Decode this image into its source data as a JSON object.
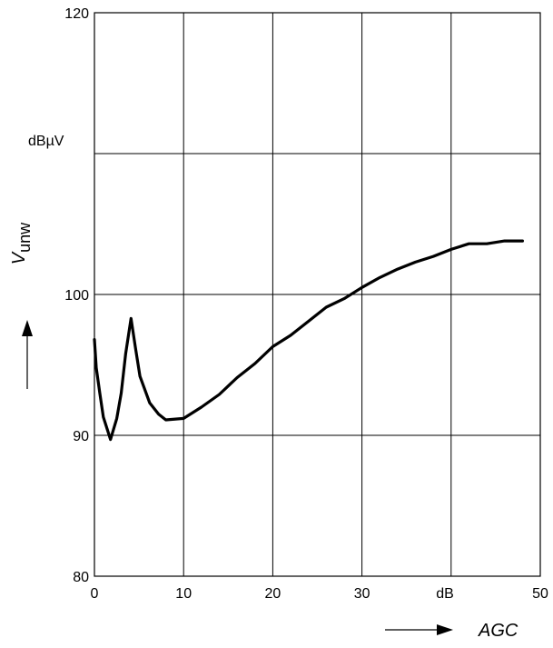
{
  "chart_data": {
    "type": "line",
    "xlabel": "AGC",
    "x_unit": "dB",
    "ylabel_main": "V",
    "ylabel_sub": "unw",
    "y_unit": "dBµV",
    "xlim": [
      0,
      50
    ],
    "ylim": [
      80,
      120
    ],
    "x_ticks": [
      {
        "value": 0,
        "label": "0"
      },
      {
        "value": 10,
        "label": "10"
      },
      {
        "value": 20,
        "label": "20"
      },
      {
        "value": 30,
        "label": "30"
      },
      {
        "value": 50,
        "label": "50"
      }
    ],
    "y_ticks": [
      {
        "value": 80,
        "label": "80"
      },
      {
        "value": 90,
        "label": "90"
      },
      {
        "value": 100,
        "label": "100"
      },
      {
        "value": 120,
        "label": "120"
      }
    ],
    "grid": true,
    "series": [
      {
        "color": "#000000",
        "points": [
          [
            0.0,
            96.8
          ],
          [
            0.2,
            94.8
          ],
          [
            0.6,
            93.0
          ],
          [
            1.0,
            91.3
          ],
          [
            1.8,
            89.7
          ],
          [
            2.5,
            91.2
          ],
          [
            3.0,
            93.0
          ],
          [
            3.5,
            95.8
          ],
          [
            4.1,
            98.3
          ],
          [
            4.6,
            96.2
          ],
          [
            5.1,
            94.2
          ],
          [
            6.2,
            92.3
          ],
          [
            7.2,
            91.5
          ],
          [
            8.0,
            91.1
          ],
          [
            10.0,
            91.2
          ],
          [
            12.0,
            92.0
          ],
          [
            14.0,
            92.9
          ],
          [
            16.0,
            94.1
          ],
          [
            18.0,
            95.1
          ],
          [
            20.0,
            96.3
          ],
          [
            22.0,
            97.1
          ],
          [
            24.0,
            98.1
          ],
          [
            26.0,
            99.1
          ],
          [
            28.0,
            99.7
          ],
          [
            30.0,
            100.5
          ],
          [
            32.0,
            101.2
          ],
          [
            34.0,
            101.8
          ],
          [
            36.0,
            102.3
          ],
          [
            38.0,
            102.7
          ],
          [
            40.0,
            103.2
          ],
          [
            42.0,
            103.6
          ],
          [
            44.0,
            103.6
          ],
          [
            46.0,
            103.8
          ],
          [
            48.0,
            103.8
          ]
        ]
      }
    ]
  }
}
